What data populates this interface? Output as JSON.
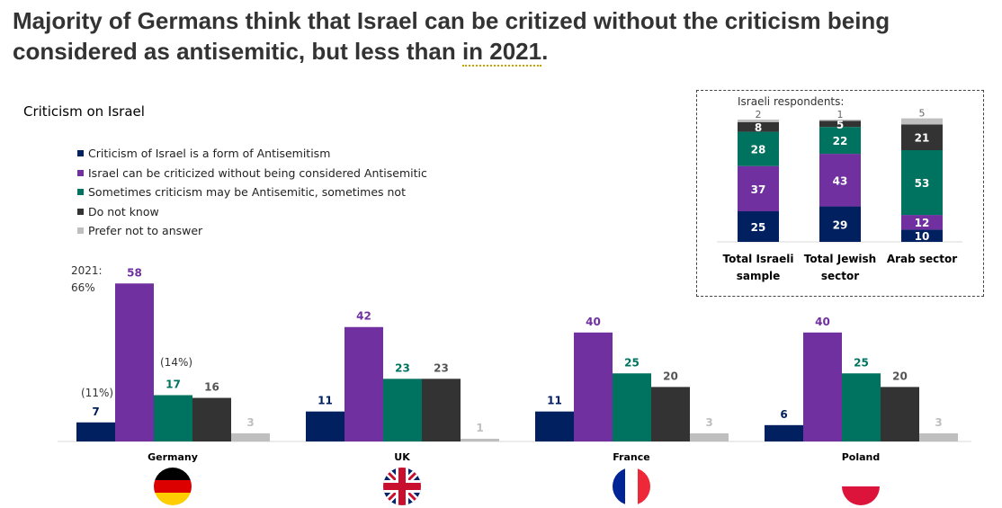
{
  "title": {
    "pre": "Majority of Germans think that Israel can be critized without the criticism being considered as antisemitic, but less than ",
    "underlined": "in 2021",
    "post": "."
  },
  "chart_data": [
    {
      "type": "bar",
      "title": "Criticism on Israel",
      "categories": [
        "Germany",
        "UK",
        "France",
        "Poland"
      ],
      "series": [
        {
          "name": "Criticism of Israel is a form of Antisemitism",
          "color": "#002060",
          "values": [
            7,
            11,
            11,
            6
          ]
        },
        {
          "name": "Israel can be criticized without being considered Antisemitic",
          "color": "#7030A0",
          "values": [
            58,
            42,
            40,
            40
          ]
        },
        {
          "name": "Sometimes criticism may be Antisemitic, sometimes not",
          "color": "#007360",
          "values": [
            17,
            23,
            25,
            25
          ]
        },
        {
          "name": "Do not know",
          "color": "#333333",
          "values": [
            16,
            23,
            20,
            20
          ]
        },
        {
          "name": "Prefer not to answer",
          "color": "#BFBFBF",
          "values": [
            3,
            1,
            3,
            3
          ]
        }
      ],
      "annotations": {
        "germany_2021_purple": [
          "2021:",
          "66%"
        ],
        "germany_2021_navy": "(11%)",
        "germany_2021_green": "(14%)"
      },
      "flags": [
        "germany-flag",
        "uk-flag",
        "france-flag",
        "poland-flag"
      ]
    },
    {
      "type": "bar",
      "stacked": true,
      "title": "Israeli respondents:",
      "categories": [
        "Total Israeli sample",
        "Total Jewish sector",
        "Arab sector"
      ],
      "series": [
        {
          "name": "Criticism of Israel is a form of Antisemitism",
          "values": [
            25,
            29,
            10
          ]
        },
        {
          "name": "Israel can be criticized without being considered Antisemitic",
          "values": [
            37,
            43,
            12
          ]
        },
        {
          "name": "Sometimes criticism may be Antisemitic, sometimes not",
          "values": [
            28,
            22,
            53
          ]
        },
        {
          "name": "Do not know",
          "values": [
            8,
            5,
            21
          ]
        },
        {
          "name": "Prefer not to answer",
          "values": [
            2,
            1,
            5
          ]
        }
      ]
    }
  ]
}
